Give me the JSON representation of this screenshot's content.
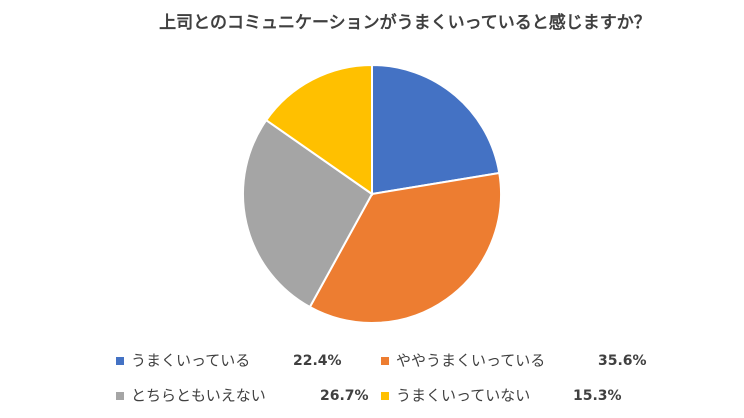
{
  "chart_data": {
    "type": "pie",
    "title": "上司とのコミュニケーションがうまくいっていると感じますか？",
    "categories": [
      "うまくいっている",
      "ややうまくいっている",
      "とちらともいえない",
      "うまくいっていない"
    ],
    "values": [
      22.4,
      35.6,
      26.7,
      15.3
    ],
    "value_labels": [
      "22.4%",
      "35.6%",
      "26.7%",
      "15.3%"
    ],
    "colors": [
      "#4472c4",
      "#ed7d31",
      "#a5a5a5",
      "#ffc000"
    ]
  }
}
